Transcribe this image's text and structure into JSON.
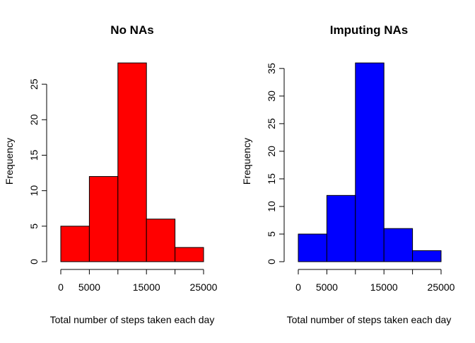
{
  "chart_data": [
    {
      "type": "bar",
      "title": "No NAs",
      "xlabel": "Total number of steps taken each day",
      "ylabel": "Frequency",
      "bin_edges": [
        0,
        5000,
        10000,
        15000,
        20000,
        25000
      ],
      "values": [
        5,
        12,
        28,
        6,
        2
      ],
      "xlim": [
        0,
        25000
      ],
      "ylim": [
        0,
        28
      ],
      "x_ticks": [
        0,
        5000,
        10000,
        15000,
        20000,
        25000
      ],
      "x_tick_labels": [
        "0",
        "5000",
        "",
        "15000",
        "",
        "25000"
      ],
      "y_ticks": [
        0,
        5,
        10,
        15,
        20,
        25
      ],
      "y_tick_labels": [
        "0",
        "5",
        "10",
        "15",
        "20",
        "25"
      ],
      "bar_color": "#ff0000",
      "grid": false
    },
    {
      "type": "bar",
      "title": "Imputing NAs",
      "xlabel": "Total number of steps taken each day",
      "ylabel": "Frequency",
      "bin_edges": [
        0,
        5000,
        10000,
        15000,
        20000,
        25000
      ],
      "values": [
        5,
        12,
        36,
        6,
        2
      ],
      "xlim": [
        0,
        25000
      ],
      "ylim": [
        0,
        36
      ],
      "x_ticks": [
        0,
        5000,
        10000,
        15000,
        20000,
        25000
      ],
      "x_tick_labels": [
        "0",
        "5000",
        "",
        "15000",
        "",
        "25000"
      ],
      "y_ticks": [
        0,
        5,
        10,
        15,
        20,
        25,
        30,
        35
      ],
      "y_tick_labels": [
        "0",
        "5",
        "10",
        "15",
        "20",
        "25",
        "30",
        "35"
      ],
      "bar_color": "#0000ff",
      "grid": false
    }
  ]
}
